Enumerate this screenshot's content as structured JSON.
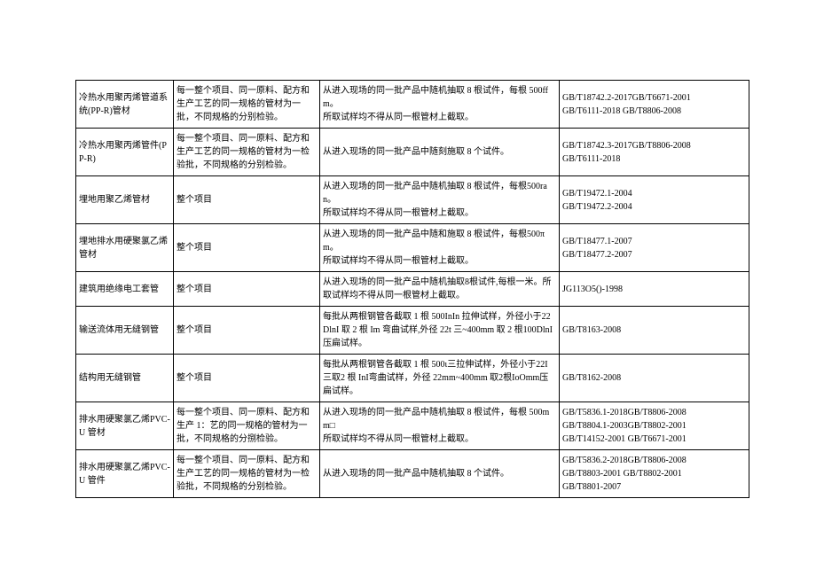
{
  "table": {
    "columns": [
      "c1",
      "c2",
      "c3",
      "c4"
    ],
    "rows": [
      {
        "c1": "冷热水用聚丙烯管道系统(PP-R)管材",
        "c2": "每一整个项目、同一原料、配方和生产工艺的同一规格的管材为一批，不同规格的分别检验。",
        "c3": "从进入现场的同一批产品中随机抽取 8 根试件，每根 500ffm。\n所取试样均不得从同一根管材上截取。",
        "c4": "GB/T18742.2-2017GB/T6671-2001\nGB/T6111-2018       GB/T8806-2008"
      },
      {
        "c1": "冷热水用聚丙烯管件(PP-R)",
        "c2": "每一整个项目、同一原料、配方和生产工艺的同一规格的管材为一检验批，不同规格的分别检验。",
        "c3": "从进入现场的同一批产品中随刻施取 8 个试件。",
        "c4": "GB/T18742.3-2017GB/T8806-2008\nGB/T6111-2018"
      },
      {
        "c1": "埋地用聚乙烯管材",
        "c2": "整个项目",
        "c3": "从进入现场的同一批产品中随机抽取 8 根试件，每根500ran。\n所取试样均不得从同一根管材上截取。",
        "c4": "GB/T19472.1-2004\nGB/T19472.2-2004"
      },
      {
        "c1": "埋地排水用硬聚氯乙烯管材",
        "c2": "整个项目",
        "c3": "从进入现场的同一批产品中随和施取 8 根试件，每根500πm。\n所取试样均不得从同一根管材上截取。",
        "c4": "GB/T18477.1-2007\nGB/T18477.2-2007"
      },
      {
        "c1": "建筑用绝缘电工套管",
        "c2": "整个项目",
        "c3": "从进入现场的同一批产品中随机抽取8根试件,每根一米。所取试样均不得从同一根管材上截取。",
        "c4": "JG113O5()-1998"
      },
      {
        "c1": "输送流体用无缝钢管",
        "c2": "整个项目",
        "c3": "每批从两根钢管各截取 1 根 500InIn 拉伸试样，外径小于22DlnI 取 2 根 Im 弯曲试样,外径 22t 三~400mm 取 2 根100DlnI 压扁试样。",
        "c4": "GB/T8163-2008"
      },
      {
        "c1": "结构用无缝钢管",
        "c2": "整个项目",
        "c3": "每批从两根钢管各截取 1 根 500ι三拉伸试样，外径小于22I 三取2 根 InI弯曲试样，外径 22mm~400mm 取2根IoOmm压扁试样。",
        "c4": "GB/T8162-2008"
      },
      {
        "c1": "排水用硬聚氯乙烯PVC-U 管材",
        "c2": "每一整个项目、同一原料、配方和生产 1：艺的同一规格的管材为一批，不同规格的分捌检验。",
        "c3": "从进入现场的同一批产品中随机抽取 8 根试件，每根 500mm□\n所取试样均不得从同一根管材上截取。",
        "c4": "GB/T5836.1-2018GB/T8806-2008\nGB/T8804.1-2003GB/T8802-2001\nGB/T14152-2001      GB/T6671-2001"
      },
      {
        "c1": "排水用硬聚氯乙烯PVC-U 管件",
        "c2": "每一整个项目、同一原料、配方和生产工艺的同一规格的管材为一检验批，不同规格的分别检验。",
        "c3": "从进入现场的同一批产品中随机抽取 8 个试件。",
        "c4": "GB/T5836.2-2018GB/T8806-2008\nGB/T8803-2001     GB/T8802-2001\nGB/T8801-2007"
      }
    ]
  }
}
